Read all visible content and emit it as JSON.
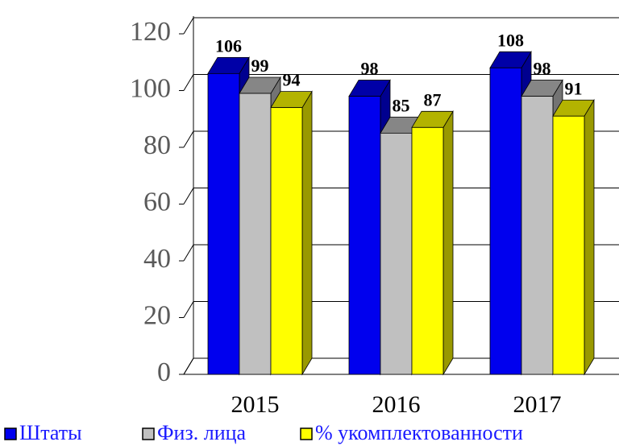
{
  "chart_data": {
    "type": "bar3d",
    "categories": [
      "2015",
      "2016",
      "2017"
    ],
    "series": [
      {
        "name": "Штаты",
        "color": "#0000ee",
        "values": [
          106,
          98,
          108
        ]
      },
      {
        "name": "Физ. лица",
        "color": "#c0c0c0",
        "values": [
          99,
          85,
          98
        ]
      },
      {
        "name": "% укомплектованности",
        "color": "#ffff00",
        "values": [
          94,
          87,
          91
        ]
      }
    ],
    "ylim": [
      0,
      120
    ],
    "yticks": [
      0,
      20,
      40,
      60,
      80,
      100,
      120
    ],
    "grid": true,
    "legend": "bottom"
  }
}
